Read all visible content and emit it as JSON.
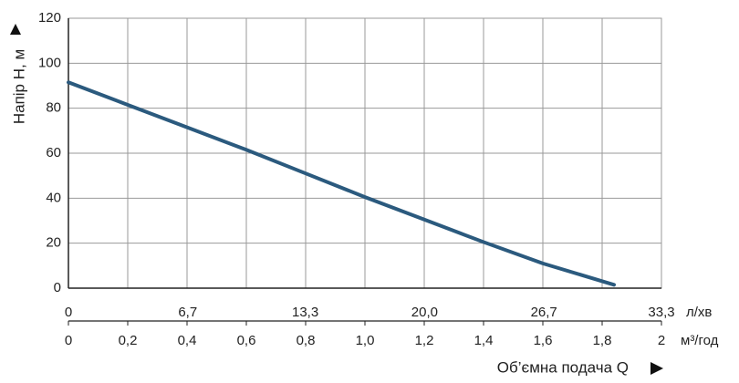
{
  "chart_data": {
    "type": "line",
    "ylabel": "Напір H, м",
    "xlabel": "Об’ємна подача Q",
    "xunit": "м³/год",
    "x2unit": "л/хв",
    "x": [
      0,
      0.2,
      0.4,
      0.6,
      0.8,
      1.0,
      1.2,
      1.4,
      1.6,
      1.84
    ],
    "series": [
      {
        "name": "H",
        "color": "#2b5a7e",
        "values": [
          91.5,
          81.5,
          71.5,
          61.5,
          51,
          40.5,
          30.5,
          20.5,
          11,
          1.5
        ]
      }
    ],
    "xlim": [
      0,
      2
    ],
    "xticks": [
      0,
      {
        "value": 0.2,
        "label": "0,2"
      },
      {
        "value": 0.4,
        "label": "0,4"
      },
      {
        "value": 0.6,
        "label": "0,6"
      },
      {
        "value": 0.8,
        "label": "0,8"
      },
      {
        "value": 1.0,
        "label": "1,0"
      },
      {
        "value": 1.2,
        "label": "1,2"
      },
      {
        "value": 1.4,
        "label": "1,4"
      },
      {
        "value": 1.6,
        "label": "1,6"
      },
      {
        "value": 1.8,
        "label": "1,8"
      },
      2
    ],
    "x2lim": [
      0,
      33.3
    ],
    "x2ticks": [
      0,
      {
        "value": 6.7,
        "label": "6,7"
      },
      {
        "value": 13.3,
        "label": "13,3"
      },
      {
        "value": 20,
        "label": "20,0"
      },
      {
        "value": 26.7,
        "label": "26,7"
      },
      {
        "value": 33.3,
        "label": "33,3"
      }
    ],
    "ylim": [
      0,
      120
    ],
    "yticks": [
      0,
      20,
      40,
      60,
      80,
      100,
      120
    ],
    "grid": true
  }
}
